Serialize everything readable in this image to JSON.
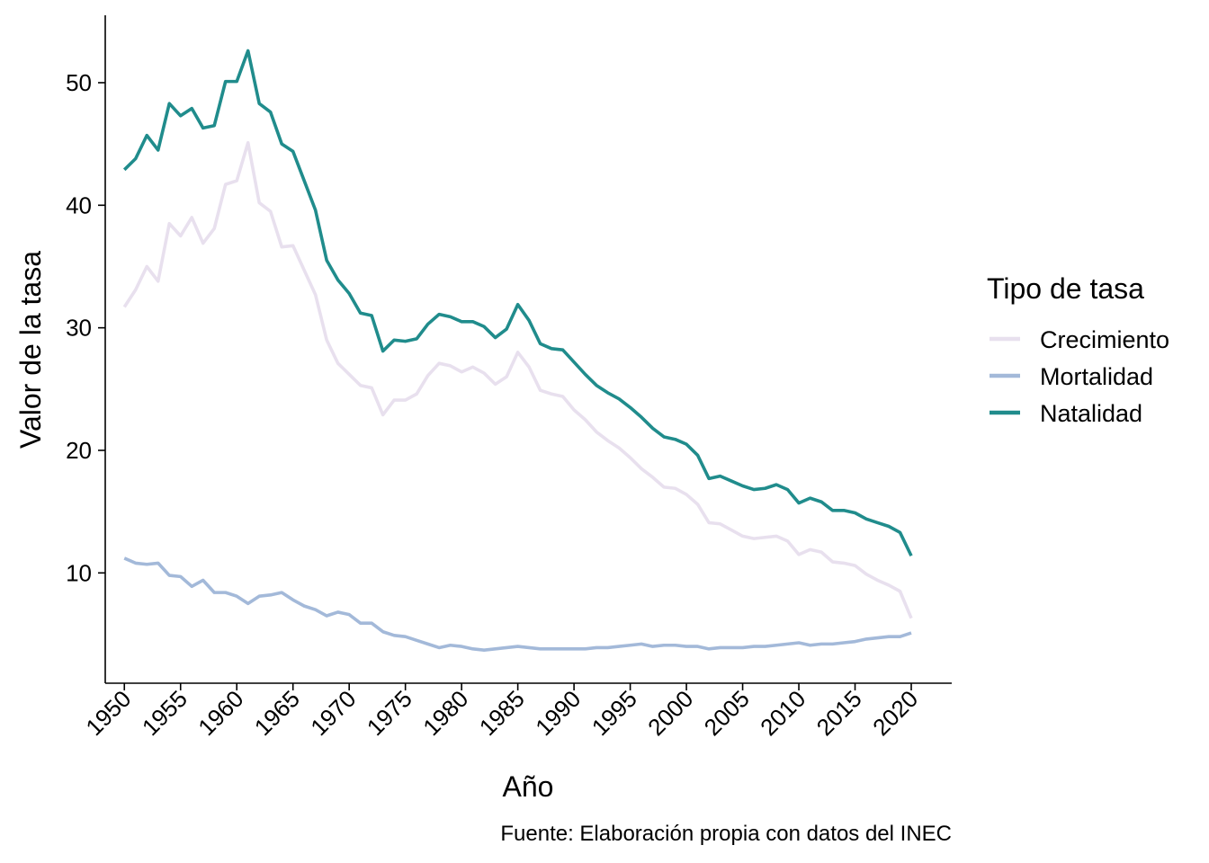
{
  "chart_data": {
    "type": "line",
    "title": "",
    "xlabel": "Año",
    "ylabel": "Valor de la tasa",
    "caption": "Fuente: Elaboración propia con datos del INEC",
    "xlim": [
      1948.3,
      2023.6
    ],
    "ylim": [
      1.0,
      55.5
    ],
    "x_ticks": [
      1950,
      1955,
      1960,
      1965,
      1970,
      1975,
      1980,
      1985,
      1990,
      1995,
      2000,
      2005,
      2010,
      2015,
      2020
    ],
    "y_ticks": [
      10,
      20,
      30,
      40,
      50
    ],
    "grid": false,
    "legend": {
      "title": "Tipo de tasa",
      "position": "right"
    },
    "x": [
      1950,
      1951,
      1952,
      1953,
      1954,
      1955,
      1956,
      1957,
      1958,
      1959,
      1960,
      1961,
      1962,
      1963,
      1964,
      1965,
      1966,
      1967,
      1968,
      1969,
      1970,
      1971,
      1972,
      1973,
      1974,
      1975,
      1976,
      1977,
      1978,
      1979,
      1980,
      1981,
      1982,
      1983,
      1984,
      1985,
      1986,
      1987,
      1988,
      1989,
      1990,
      1991,
      1992,
      1993,
      1994,
      1995,
      1996,
      1997,
      1998,
      1999,
      2000,
      2001,
      2002,
      2003,
      2004,
      2005,
      2006,
      2007,
      2008,
      2009,
      2010,
      2011,
      2012,
      2013,
      2014,
      2015,
      2016,
      2017,
      2018,
      2019,
      2020
    ],
    "series": [
      {
        "name": "Crecimiento",
        "color": "#E8E0EE",
        "values": [
          31.7,
          33.1,
          35.0,
          33.8,
          38.5,
          37.5,
          39.0,
          36.9,
          38.1,
          41.7,
          42.0,
          45.1,
          40.2,
          39.5,
          36.6,
          36.7,
          34.7,
          32.7,
          29.0,
          27.1,
          26.2,
          25.3,
          25.1,
          22.9,
          24.1,
          24.1,
          24.6,
          26.1,
          27.1,
          26.9,
          26.4,
          26.8,
          26.3,
          25.4,
          26.0,
          28.0,
          26.8,
          24.9,
          24.6,
          24.4,
          23.3,
          22.5,
          21.5,
          20.8,
          20.2,
          19.4,
          18.5,
          17.8,
          17.0,
          16.9,
          16.4,
          15.6,
          14.1,
          14.0,
          13.5,
          13.0,
          12.8,
          12.9,
          13.0,
          12.6,
          11.5,
          11.9,
          11.7,
          10.9,
          10.8,
          10.6,
          9.9,
          9.4,
          9.0,
          8.5,
          6.3
        ]
      },
      {
        "name": "Mortalidad",
        "color": "#A3B9D9",
        "values": [
          11.2,
          10.8,
          10.7,
          10.8,
          9.8,
          9.7,
          8.9,
          9.4,
          8.4,
          8.4,
          8.1,
          7.5,
          8.1,
          8.2,
          8.4,
          7.8,
          7.3,
          7.0,
          6.5,
          6.8,
          6.6,
          5.9,
          5.9,
          5.2,
          4.9,
          4.8,
          4.5,
          4.2,
          3.9,
          4.1,
          4.0,
          3.8,
          3.7,
          3.8,
          3.9,
          4.0,
          3.9,
          3.8,
          3.8,
          3.8,
          3.8,
          3.8,
          3.9,
          3.9,
          4.0,
          4.1,
          4.2,
          4.0,
          4.1,
          4.1,
          4.0,
          4.0,
          3.8,
          3.9,
          3.9,
          3.9,
          4.0,
          4.0,
          4.1,
          4.2,
          4.3,
          4.1,
          4.2,
          4.2,
          4.3,
          4.4,
          4.6,
          4.7,
          4.8,
          4.8,
          5.1
        ]
      },
      {
        "name": "Natalidad",
        "color": "#208C8C",
        "values": [
          42.9,
          43.8,
          45.7,
          44.5,
          48.3,
          47.3,
          47.9,
          46.3,
          46.5,
          50.1,
          50.1,
          52.6,
          48.3,
          47.6,
          45.0,
          44.4,
          42.0,
          39.6,
          35.5,
          33.9,
          32.8,
          31.2,
          31.0,
          28.1,
          29.0,
          28.9,
          29.1,
          30.3,
          31.1,
          30.9,
          30.5,
          30.5,
          30.1,
          29.2,
          29.9,
          31.9,
          30.6,
          28.7,
          28.3,
          28.2,
          27.2,
          26.2,
          25.3,
          24.7,
          24.2,
          23.5,
          22.7,
          21.8,
          21.1,
          20.9,
          20.5,
          19.6,
          17.7,
          17.9,
          17.5,
          17.1,
          16.8,
          16.9,
          17.2,
          16.8,
          15.7,
          16.1,
          15.8,
          15.1,
          15.1,
          14.9,
          14.4,
          14.1,
          13.8,
          13.3,
          11.4
        ]
      }
    ]
  }
}
